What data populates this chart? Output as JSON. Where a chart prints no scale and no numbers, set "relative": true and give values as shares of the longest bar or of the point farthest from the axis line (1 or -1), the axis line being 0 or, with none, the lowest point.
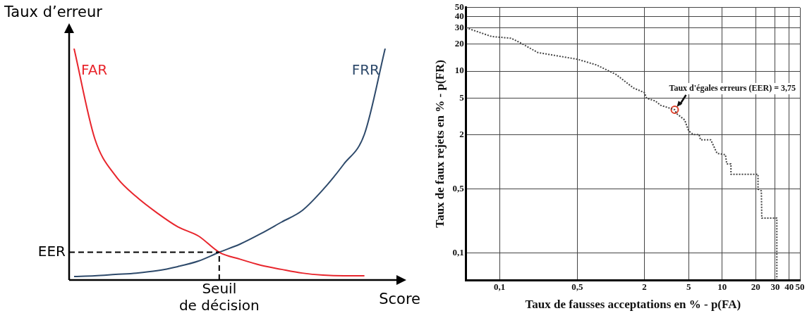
{
  "chart_data": [
    {
      "type": "line",
      "relative": true,
      "xlabel": "Score",
      "ylabel": "Taux d’erreur",
      "marker": "none",
      "categories": [
        null,
        null,
        null,
        null,
        null,
        null,
        null,
        null,
        null,
        null,
        null,
        null,
        null,
        null,
        null,
        null
      ],
      "series": [
        {
          "name": "FAR",
          "color": "#e8262d",
          "values": [
            1,
            0.61,
            0.45,
            0.36,
            0.29,
            0.23,
            0.19,
            0.12,
            0.09,
            0.064,
            0.046,
            0.03,
            0.021,
            0.018,
            0.018,
            null
          ]
        },
        {
          "name": "FRR",
          "color": "#2e4a6b",
          "values": [
            0.015,
            0.018,
            0.024,
            0.03,
            0.04,
            0.058,
            0.082,
            0.12,
            0.155,
            0.2,
            0.25,
            0.3,
            0.39,
            0.5,
            0.63,
            1
          ]
        }
      ],
      "ref_lines": [
        {
          "axis": "y",
          "value": 0.12,
          "label": "EER",
          "line_style": "dashed"
        }
      ],
      "annotations": [
        "Seuil de décision"
      ]
    },
    {
      "type": "line",
      "log": "xy",
      "grid": true,
      "xlabel": "Taux de fausses acceptations en % - p(FA)",
      "ylabel": "Taux de faux rejets en % - p(FR)",
      "xlim": [
        0.05,
        50
      ],
      "ylim": [
        0.05,
        50
      ],
      "xticks": [
        {
          "value": 0.1,
          "label": "0,1"
        },
        {
          "value": 0.5,
          "label": "0,5"
        },
        2,
        5,
        10,
        20,
        30,
        40,
        50
      ],
      "yticks": [
        {
          "value": 0.1,
          "label": "0,1"
        },
        {
          "value": 0.5,
          "label": "0,5"
        },
        2,
        5,
        10,
        20,
        30,
        40,
        50
      ],
      "series": [
        {
          "type": "line",
          "color": "#444444",
          "line_style": "dotted",
          "marker": "none",
          "x": [
            0.05,
            0.085,
            0.127,
            0.16,
            0.22,
            0.5,
            0.74,
            1.11,
            1.6,
            2,
            2.1,
            2.5,
            2.8,
            3.75,
            3.9,
            4.6,
            5,
            5.5,
            6.2,
            6.4,
            7.9,
            9,
            10.7,
            11,
            12,
            12,
            21,
            21,
            22.5,
            22.7,
            31,
            31
          ],
          "values": [
            30,
            24,
            23,
            20,
            16,
            13.5,
            11.7,
            9.2,
            6.5,
            5.8,
            5,
            4.7,
            4.2,
            3.75,
            3.4,
            2.9,
            2.2,
            2,
            2,
            1.75,
            1.75,
            1.24,
            1.2,
            0.95,
            0.95,
            0.73,
            0.73,
            0.5,
            0.48,
            0.24,
            0.24,
            0.05
          ]
        },
        {
          "type": "scatter",
          "color": "#e0402a",
          "marker": "circle",
          "x": [
            3.75
          ],
          "values": [
            3.75
          ]
        }
      ],
      "annotations": [
        {
          "text": "Taux d'égales erreurs (EER) = 3,75",
          "x": 3.75,
          "y": 3.75
        }
      ]
    }
  ]
}
